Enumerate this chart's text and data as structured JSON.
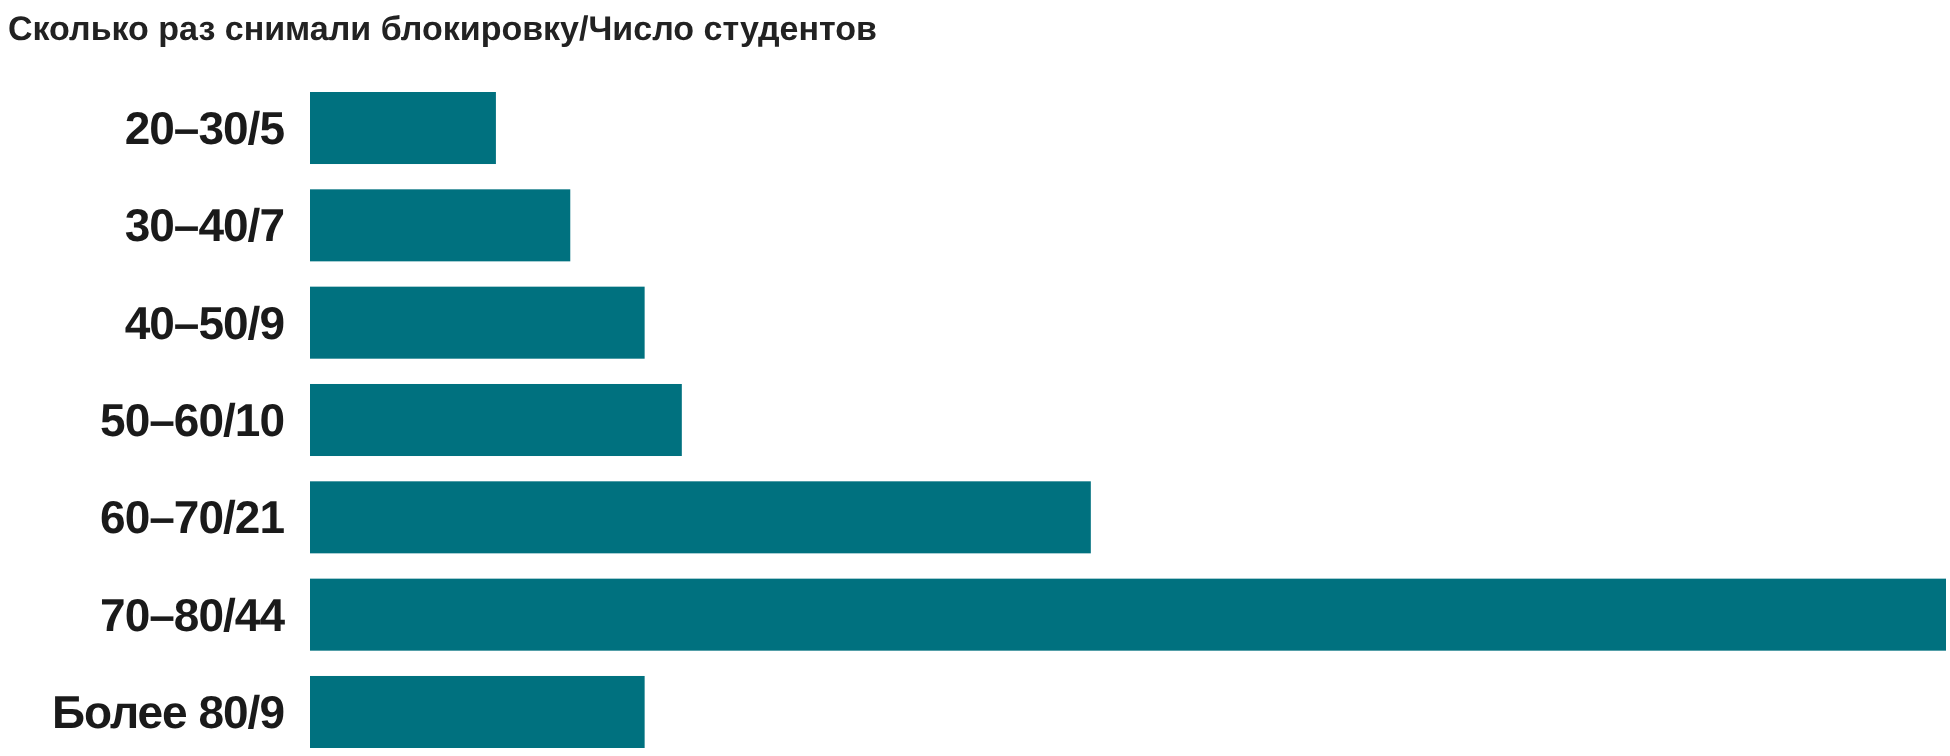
{
  "chart_data": {
    "type": "bar",
    "orientation": "horizontal",
    "title": "Сколько раз снимали блокировку/Число студентов",
    "categories": [
      "20–30/",
      "30–40/",
      "40–50/",
      "50–60/",
      "60–70/",
      "70–80/",
      "Более 80/"
    ],
    "values": [
      5,
      7,
      9,
      10,
      21,
      44,
      9
    ],
    "color": "#00717f",
    "data_labels": true
  }
}
